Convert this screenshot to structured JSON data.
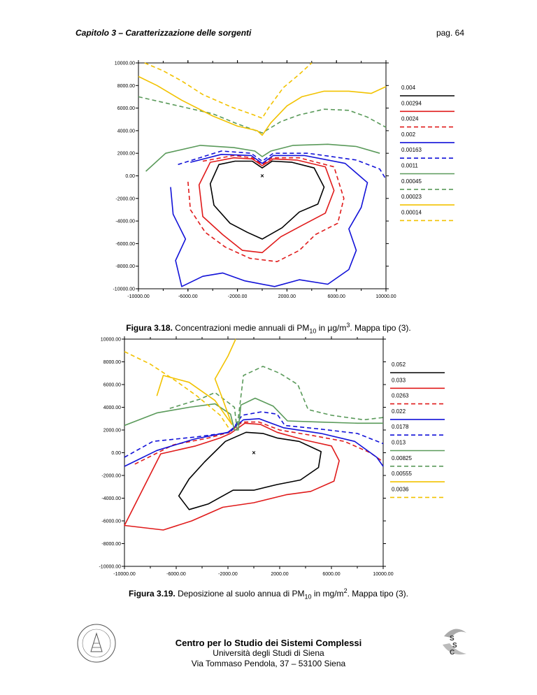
{
  "header": {
    "chapter": "Capitolo 3 – Caratterizzazione delle sorgenti",
    "page": "pag. 64"
  },
  "colors": {
    "black": "#000000",
    "red": "#e01b1b",
    "blue": "#1212d8",
    "green": "#5a9a5a",
    "yellow": "#f2c200"
  },
  "chart_data": [
    {
      "type": "contour",
      "xlim": [
        -10000,
        10000
      ],
      "ylim": [
        -10000,
        10000
      ],
      "x_ticks": [
        "-10000.00",
        "-6000.00",
        "-2000.00",
        "2000.00",
        "6000.00",
        "10000.00"
      ],
      "y_ticks": [
        "10000.00",
        "8000.00",
        "6000.00",
        "4000.00",
        "2000.00",
        "0.00",
        "-2000.00",
        "-4000.00",
        "-6000.00",
        "-8000.00",
        "-10000.00"
      ],
      "source_marker": [
        0,
        0
      ],
      "legend": [
        {
          "label": "0.004",
          "color": "black",
          "dash": false
        },
        {
          "label": "0.00294",
          "color": "red",
          "dash": false
        },
        {
          "label": "0.0024",
          "color": "red",
          "dash": true
        },
        {
          "label": "0.002",
          "color": "blue",
          "dash": false
        },
        {
          "label": "0.00163",
          "color": "blue",
          "dash": true
        },
        {
          "label": "0.0011",
          "color": "green",
          "dash": false
        },
        {
          "label": "0.00045",
          "color": "green",
          "dash": true
        },
        {
          "label": "0.00023",
          "color": "yellow",
          "dash": false
        },
        {
          "label": "0.00014",
          "color": "yellow",
          "dash": true
        }
      ],
      "caption_bold": "Figura 3.18.",
      "caption_text": " Concentrazioni medie annuali di PM",
      "caption_sub": "10",
      "caption_text2": " in µg/m",
      "caption_sup": "3",
      "caption_text3": ". Mappa tipo (3)."
    },
    {
      "type": "contour",
      "xlim": [
        -10000,
        10000
      ],
      "ylim": [
        -10000,
        10000
      ],
      "x_ticks": [
        "-10000.00",
        "-6000.00",
        "-2000.00",
        "2000.00",
        "6000.00",
        "10000.00"
      ],
      "y_ticks": [
        "10000.00",
        "8000.00",
        "6000.00",
        "4000.00",
        "2000.00",
        "0.00",
        "-2000.00",
        "-4000.00",
        "-6000.00",
        "-8000.00",
        "-10000.00"
      ],
      "source_marker": [
        0,
        0
      ],
      "legend": [
        {
          "label": "0.052",
          "color": "black",
          "dash": false
        },
        {
          "label": "0.033",
          "color": "red",
          "dash": false
        },
        {
          "label": "0.0263",
          "color": "red",
          "dash": true
        },
        {
          "label": "0.022",
          "color": "blue",
          "dash": false
        },
        {
          "label": "0.0178",
          "color": "blue",
          "dash": true
        },
        {
          "label": "0.013",
          "color": "green",
          "dash": false
        },
        {
          "label": "0.00825",
          "color": "green",
          "dash": true
        },
        {
          "label": "0.00555",
          "color": "yellow",
          "dash": false
        },
        {
          "label": "0.0036",
          "color": "yellow",
          "dash": true
        }
      ],
      "caption_bold": "Figura 3.19.",
      "caption_text": " Deposizione al suolo annua di PM",
      "caption_sub": "10",
      "caption_text2": " in mg/m",
      "caption_sup": "2",
      "caption_text3": ". Mappa tipo (3)."
    }
  ],
  "footer": {
    "org": "Centro per lo Studio dei Sistemi Complessi",
    "university": "Università degli Studi di Siena",
    "address": "Via Tommaso Pendola, 37 – 53100 Siena"
  }
}
